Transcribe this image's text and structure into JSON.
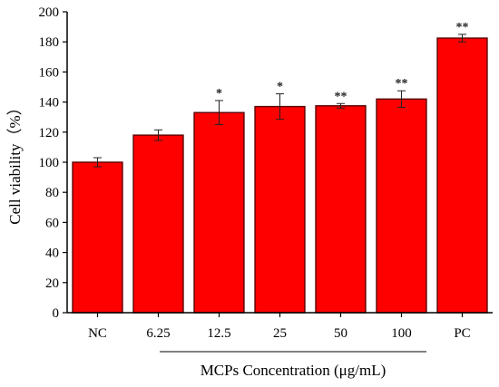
{
  "chart_data": {
    "type": "bar",
    "xlabel": "MCPs Concentration (μg/mL)",
    "ylabel": "Cell viability（%）",
    "ylim": [
      0,
      200
    ],
    "yticks": [
      0,
      20,
      40,
      60,
      80,
      100,
      120,
      140,
      160,
      180,
      200
    ],
    "categories": [
      "NC",
      "6.25",
      "12.5",
      "25",
      "50",
      "100",
      "PC"
    ],
    "values": [
      100,
      118,
      133,
      137,
      137.5,
      142,
      182.5
    ],
    "errors": [
      3,
      3.5,
      8,
      8.5,
      1.5,
      5.5,
      2.5
    ],
    "significance": [
      "",
      "",
      "*",
      "*",
      "**",
      "**",
      "**"
    ],
    "bar_color": "#ff0000",
    "grid": false,
    "legend": "none"
  }
}
